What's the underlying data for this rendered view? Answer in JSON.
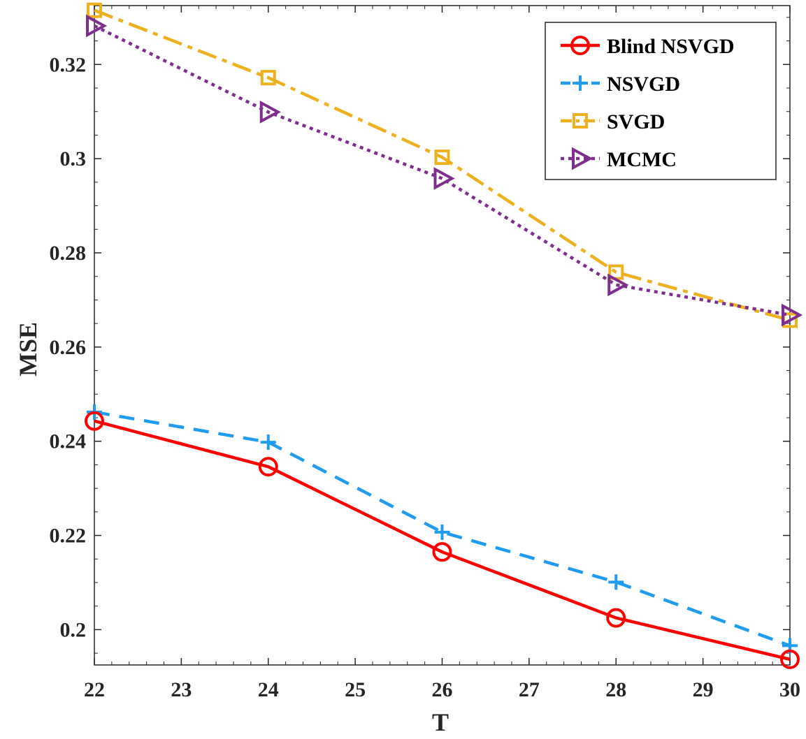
{
  "chart_data": {
    "type": "line",
    "title": "",
    "xlabel": "T",
    "ylabel": "MSE",
    "xlim": [
      22,
      30
    ],
    "ylim": [
      0.1925,
      0.3325
    ],
    "xticks": [
      22,
      23,
      24,
      25,
      26,
      27,
      28,
      29,
      30
    ],
    "xtick_labels": [
      "22",
      "23",
      "24",
      "25",
      "26",
      "27",
      "28",
      "29",
      "30"
    ],
    "yticks": [
      0.2,
      0.22,
      0.24,
      0.26,
      0.28,
      0.3,
      0.32
    ],
    "ytick_labels": [
      "0.2",
      "0.22",
      "0.24",
      "0.26",
      "0.28",
      "0.3",
      "0.32"
    ],
    "grid": false,
    "legend_position": "top-right",
    "x": [
      22,
      24,
      26,
      28,
      30
    ],
    "series": [
      {
        "name": "Blind NSVGD",
        "color": "#ff0000",
        "marker": "circle",
        "line_style": "solid",
        "values": [
          0.2443,
          0.2346,
          0.2165,
          0.2025,
          0.1937
        ]
      },
      {
        "name": "NSVGD",
        "color": "#1f9bf0",
        "marker": "plus",
        "line_style": "dashed",
        "values": [
          0.2462,
          0.2398,
          0.2207,
          0.2101,
          0.1966
        ]
      },
      {
        "name": "SVGD",
        "color": "#edb120",
        "marker": "square",
        "line_style": "dashdot",
        "values": [
          0.3315,
          0.3172,
          0.3003,
          0.2759,
          0.2657
        ]
      },
      {
        "name": "MCMC",
        "color": "#7e2f8e",
        "marker": "triangle-right",
        "line_style": "dotted",
        "values": [
          0.3282,
          0.3099,
          0.2958,
          0.2732,
          0.2668
        ]
      }
    ]
  }
}
